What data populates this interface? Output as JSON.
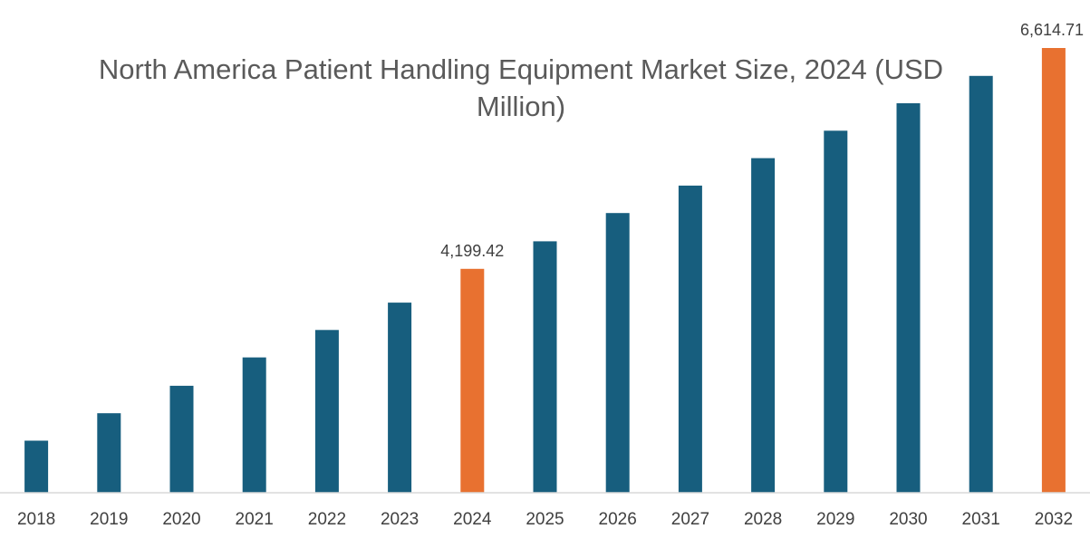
{
  "chart_data": {
    "type": "bar",
    "title": "North America Patient Handling Equipment Market Size, 2024 (USD Million)",
    "xlabel": "",
    "ylabel": "",
    "categories": [
      "2018",
      "2019",
      "2020",
      "2021",
      "2022",
      "2023",
      "2024",
      "2025",
      "2026",
      "2027",
      "2028",
      "2029",
      "2030",
      "2031",
      "2032"
    ],
    "series": [
      {
        "values": [
          2320,
          2620,
          2920,
          3230,
          3530,
          3830,
          4199.42,
          4500,
          4810,
          5110,
          5410,
          5710,
          6010,
          6310,
          6614.71
        ]
      }
    ],
    "data_labels": [
      {
        "category": "2024",
        "text": "4,199.42"
      },
      {
        "category": "2032",
        "text": "6,614.71"
      }
    ],
    "highlight_categories": [
      "2024",
      "2032"
    ],
    "ylim": [
      1750,
      6614.71
    ],
    "grid": false,
    "legend": "none",
    "colors": {
      "bar": "#175e7e",
      "highlight": "#e87130",
      "axis": "#d9d9d9",
      "tick_label": "#404040",
      "title": "#5a5a5a"
    }
  }
}
